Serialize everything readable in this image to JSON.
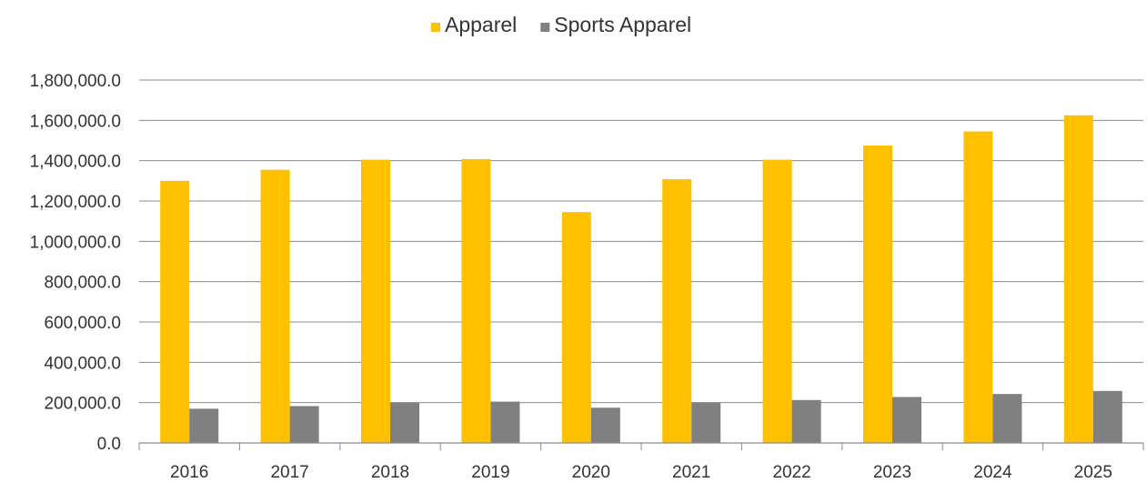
{
  "chart_data": {
    "type": "bar",
    "categories": [
      "2016",
      "2017",
      "2018",
      "2019",
      "2020",
      "2021",
      "2022",
      "2023",
      "2024",
      "2025"
    ],
    "series": [
      {
        "name": "Apparel",
        "color": "#FFC000",
        "values": [
          1300000,
          1355000,
          1405000,
          1408000,
          1145000,
          1308000,
          1405000,
          1475000,
          1545000,
          1625000
        ]
      },
      {
        "name": "Sports Apparel",
        "color": "#808080",
        "values": [
          170000,
          183000,
          200000,
          205000,
          175000,
          200000,
          213000,
          228000,
          243000,
          258000
        ]
      }
    ],
    "ylim": [
      0,
      1800000
    ],
    "yticks": [
      "0.0",
      "200,000.0",
      "400,000.0",
      "600,000.0",
      "800,000.0",
      "1,000,000.0",
      "1,200,000.0",
      "1,400,000.0",
      "1,600,000.0",
      "1,800,000.0"
    ],
    "ytick_values": [
      0,
      200000,
      400000,
      600000,
      800000,
      1000000,
      1200000,
      1400000,
      1600000,
      1800000
    ],
    "grid": true,
    "legend_position": "top-center",
    "title": "",
    "xlabel": "",
    "ylabel": ""
  }
}
